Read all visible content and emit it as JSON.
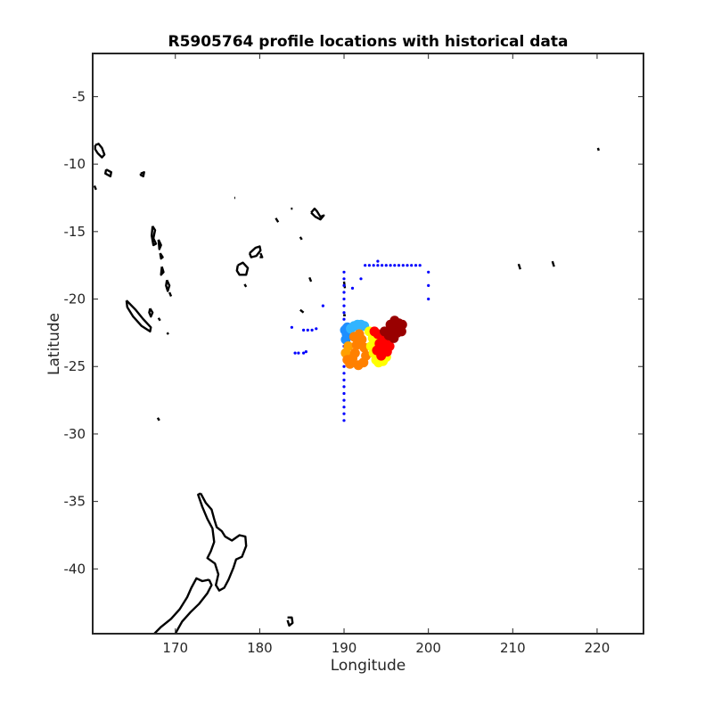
{
  "chart_data": {
    "type": "scatter",
    "title": "R5905764 profile locations with historical data",
    "xlabel": "Longitude",
    "ylabel": "Latitude",
    "xlim": [
      160.2,
      225.5
    ],
    "ylim": [
      -44.8,
      -1.8
    ],
    "xticks": [
      170,
      180,
      190,
      200,
      210,
      220
    ],
    "yticks": [
      -5,
      -10,
      -15,
      -20,
      -25,
      -30,
      -35,
      -40
    ],
    "grid": false,
    "legend": "none",
    "colors": {
      "historical": "#0000ff",
      "coastline": "#000000",
      "profiles_cold": "#1f8fff",
      "profiles_warm": "#ffff00",
      "profiles_hot": "#990000"
    },
    "series": [
      {
        "kind": "historical-locations",
        "color": "#0000ff",
        "points": [
          [
            190.0,
            -18.0
          ],
          [
            190.0,
            -18.5
          ],
          [
            190.0,
            -19.0
          ],
          [
            190.0,
            -19.5
          ],
          [
            190.0,
            -20.0
          ],
          [
            190.0,
            -20.5
          ],
          [
            190.0,
            -21.0
          ],
          [
            190.0,
            -21.5
          ],
          [
            190.0,
            -22.0
          ],
          [
            190.0,
            -22.5
          ],
          [
            190.0,
            -23.0
          ],
          [
            190.0,
            -23.5
          ],
          [
            190.0,
            -24.0
          ],
          [
            190.0,
            -24.5
          ],
          [
            190.0,
            -25.0
          ],
          [
            190.0,
            -25.5
          ],
          [
            190.0,
            -26.0
          ],
          [
            190.0,
            -26.5
          ],
          [
            190.0,
            -27.0
          ],
          [
            190.0,
            -27.5
          ],
          [
            190.0,
            -28.0
          ],
          [
            190.0,
            -28.5
          ],
          [
            190.0,
            -29.0
          ],
          [
            192.5,
            -17.5
          ],
          [
            193.0,
            -17.5
          ],
          [
            193.5,
            -17.5
          ],
          [
            194.0,
            -17.5
          ],
          [
            194.5,
            -17.5
          ],
          [
            195.0,
            -17.5
          ],
          [
            195.5,
            -17.5
          ],
          [
            196.0,
            -17.5
          ],
          [
            196.5,
            -17.5
          ],
          [
            197.0,
            -17.5
          ],
          [
            197.5,
            -17.5
          ],
          [
            198.0,
            -17.5
          ],
          [
            198.5,
            -17.5
          ],
          [
            199.0,
            -17.5
          ],
          [
            194.0,
            -17.2
          ],
          [
            200.0,
            -18.0
          ],
          [
            200.0,
            -19.0
          ],
          [
            200.0,
            -20.0
          ],
          [
            192.0,
            -18.5
          ],
          [
            191.0,
            -19.2
          ],
          [
            187.5,
            -20.5
          ],
          [
            185.2,
            -22.3
          ],
          [
            185.7,
            -22.3
          ],
          [
            186.2,
            -22.3
          ],
          [
            186.7,
            -22.2
          ],
          [
            183.8,
            -22.1
          ],
          [
            184.2,
            -24.0
          ],
          [
            184.6,
            -24.0
          ],
          [
            185.2,
            -24.0
          ],
          [
            185.5,
            -23.9
          ]
        ]
      },
      {
        "kind": "profile-locations",
        "color_scale": [
          "#1f8fff",
          "#32b4ff",
          "#ffa000",
          "#ff8000",
          "#ffff00",
          "#ff0000",
          "#990000"
        ],
        "points": [
          [
            190.1,
            -22.3,
            0.05
          ],
          [
            190.3,
            -22.6,
            0.05
          ],
          [
            190.4,
            -22.1,
            0.1
          ],
          [
            190.6,
            -22.4,
            0.1
          ],
          [
            190.2,
            -23.0,
            0.12
          ],
          [
            190.8,
            -22.2,
            0.15
          ],
          [
            191.2,
            -22.0,
            0.2
          ],
          [
            191.6,
            -21.9,
            0.22
          ],
          [
            192.0,
            -21.9,
            0.25
          ],
          [
            192.4,
            -22.0,
            0.25
          ],
          [
            190.5,
            -23.5,
            0.4
          ],
          [
            190.2,
            -24.0,
            0.42
          ],
          [
            190.4,
            -24.5,
            0.44
          ],
          [
            190.7,
            -24.8,
            0.45
          ],
          [
            191.0,
            -24.4,
            0.46
          ],
          [
            191.3,
            -24.0,
            0.47
          ],
          [
            191.5,
            -23.4,
            0.48
          ],
          [
            191.2,
            -22.8,
            0.49
          ],
          [
            191.8,
            -22.6,
            0.5
          ],
          [
            192.1,
            -23.0,
            0.5
          ],
          [
            192.4,
            -23.6,
            0.52
          ],
          [
            192.6,
            -24.2,
            0.54
          ],
          [
            192.3,
            -24.7,
            0.55
          ],
          [
            191.7,
            -24.9,
            0.55
          ],
          [
            193.0,
            -22.4,
            0.6
          ],
          [
            193.4,
            -22.9,
            0.62
          ],
          [
            193.2,
            -23.5,
            0.63
          ],
          [
            193.5,
            -24.0,
            0.64
          ],
          [
            193.8,
            -24.5,
            0.66
          ],
          [
            194.1,
            -24.7,
            0.68
          ],
          [
            194.6,
            -24.6,
            0.7
          ],
          [
            195.0,
            -24.3,
            0.71
          ],
          [
            194.4,
            -24.2,
            0.72
          ],
          [
            193.9,
            -23.8,
            0.74
          ],
          [
            194.2,
            -23.3,
            0.75
          ],
          [
            194.6,
            -23.7,
            0.76
          ],
          [
            195.1,
            -23.9,
            0.77
          ],
          [
            195.4,
            -23.5,
            0.78
          ],
          [
            194.9,
            -23.1,
            0.8
          ],
          [
            194.5,
            -22.8,
            0.82
          ],
          [
            194.0,
            -22.6,
            0.84
          ],
          [
            193.6,
            -22.4,
            0.85
          ],
          [
            194.8,
            -22.4,
            0.87
          ],
          [
            195.3,
            -22.7,
            0.88
          ],
          [
            195.7,
            -22.3,
            0.9
          ],
          [
            196.1,
            -22.0,
            0.91
          ],
          [
            196.5,
            -21.8,
            0.92
          ],
          [
            196.9,
            -21.9,
            0.94
          ],
          [
            196.3,
            -22.5,
            0.95
          ],
          [
            195.9,
            -22.9,
            0.96
          ],
          [
            196.8,
            -22.4,
            0.97
          ],
          [
            195.5,
            -21.9,
            0.98
          ],
          [
            196.0,
            -21.6,
            1.0
          ]
        ]
      }
    ],
    "coastlines": [
      [
        [
          160.5,
          -8.6
        ],
        [
          160.9,
          -8.5
        ],
        [
          161.3,
          -8.8
        ],
        [
          161.6,
          -9.3
        ],
        [
          161.3,
          -9.5
        ],
        [
          160.8,
          -9.2
        ],
        [
          160.5,
          -8.9
        ],
        [
          160.5,
          -8.6
        ]
      ],
      [
        [
          161.8,
          -10.4
        ],
        [
          162.4,
          -10.6
        ],
        [
          162.3,
          -10.9
        ],
        [
          161.7,
          -10.7
        ],
        [
          161.8,
          -10.4
        ]
      ],
      [
        [
          160.4,
          -11.6
        ],
        [
          160.6,
          -11.9
        ]
      ],
      [
        [
          165.9,
          -10.7
        ],
        [
          166.3,
          -10.6
        ],
        [
          166.2,
          -10.9
        ],
        [
          165.9,
          -10.8
        ],
        [
          165.9,
          -10.7
        ]
      ],
      [
        [
          167.3,
          -14.6
        ],
        [
          167.6,
          -14.9
        ],
        [
          167.4,
          -15.5
        ],
        [
          167.7,
          -15.9
        ],
        [
          167.4,
          -16.0
        ],
        [
          167.2,
          -15.3
        ],
        [
          167.3,
          -14.6
        ]
      ],
      [
        [
          168.0,
          -15.6
        ],
        [
          168.3,
          -16.0
        ],
        [
          168.1,
          -16.3
        ],
        [
          168.0,
          -15.6
        ]
      ],
      [
        [
          168.2,
          -16.6
        ],
        [
          168.5,
          -16.9
        ],
        [
          168.3,
          -17.0
        ],
        [
          168.2,
          -16.6
        ]
      ],
      [
        [
          168.4,
          -17.6
        ],
        [
          168.6,
          -18.0
        ],
        [
          168.3,
          -18.2
        ],
        [
          168.4,
          -17.6
        ]
      ],
      [
        [
          169.0,
          -18.6
        ],
        [
          169.3,
          -19.0
        ],
        [
          169.1,
          -19.4
        ],
        [
          168.9,
          -19.0
        ],
        [
          169.0,
          -18.6
        ]
      ],
      [
        [
          169.3,
          -19.5
        ],
        [
          169.5,
          -19.8
        ]
      ],
      [
        [
          164.2,
          -20.1
        ],
        [
          165.3,
          -20.8
        ],
        [
          166.2,
          -21.5
        ],
        [
          167.1,
          -22.1
        ],
        [
          167.0,
          -22.4
        ],
        [
          166.0,
          -22.0
        ],
        [
          165.0,
          -21.3
        ],
        [
          164.3,
          -20.6
        ],
        [
          164.2,
          -20.1
        ]
      ],
      [
        [
          167.0,
          -20.7
        ],
        [
          167.3,
          -21.0
        ],
        [
          167.1,
          -21.3
        ],
        [
          166.9,
          -21.0
        ],
        [
          167.0,
          -20.7
        ]
      ],
      [
        [
          168.0,
          -21.4
        ],
        [
          168.2,
          -21.6
        ]
      ],
      [
        [
          169.0,
          -22.6
        ],
        [
          169.2,
          -22.5
        ]
      ],
      [
        [
          167.9,
          -28.8
        ],
        [
          168.1,
          -29.0
        ]
      ],
      [
        [
          177.4,
          -17.5
        ],
        [
          178.0,
          -17.3
        ],
        [
          178.6,
          -17.7
        ],
        [
          178.4,
          -18.2
        ],
        [
          177.6,
          -18.2
        ],
        [
          177.3,
          -17.9
        ],
        [
          177.4,
          -17.5
        ]
      ],
      [
        [
          178.8,
          -16.6
        ],
        [
          179.5,
          -16.2
        ],
        [
          180.0,
          -16.1
        ],
        [
          180.1,
          -16.4
        ],
        [
          179.6,
          -16.8
        ],
        [
          179.0,
          -16.9
        ],
        [
          178.8,
          -16.6
        ]
      ],
      [
        [
          180.1,
          -16.6
        ],
        [
          180.3,
          -16.9
        ],
        [
          180.0,
          -16.9
        ]
      ],
      [
        [
          178.2,
          -18.9
        ],
        [
          178.4,
          -19.1
        ]
      ],
      [
        [
          177.0,
          -12.5
        ],
        [
          177.1,
          -12.5
        ]
      ],
      [
        [
          181.9,
          -14.0
        ],
        [
          182.2,
          -14.3
        ]
      ],
      [
        [
          183.7,
          -13.3
        ],
        [
          183.9,
          -13.3
        ]
      ],
      [
        [
          186.1,
          -13.6
        ],
        [
          186.5,
          -13.3
        ],
        [
          186.8,
          -13.5
        ],
        [
          187.2,
          -13.9
        ],
        [
          187.6,
          -13.8
        ],
        [
          187.2,
          -14.1
        ],
        [
          186.6,
          -13.9
        ],
        [
          186.1,
          -13.6
        ]
      ],
      [
        [
          184.8,
          -15.4
        ],
        [
          185.0,
          -15.6
        ]
      ],
      [
        [
          185.9,
          -18.4
        ],
        [
          186.1,
          -18.7
        ]
      ],
      [
        [
          190.0,
          -18.7
        ],
        [
          190.1,
          -19.2
        ]
      ],
      [
        [
          184.8,
          -20.8
        ],
        [
          185.2,
          -21.0
        ]
      ],
      [
        [
          189.9,
          -21.2
        ],
        [
          190.2,
          -21.2
        ]
      ],
      [
        [
          173.0,
          -34.4
        ],
        [
          173.6,
          -35.1
        ],
        [
          174.3,
          -35.6
        ],
        [
          174.6,
          -36.3
        ],
        [
          174.9,
          -36.9
        ],
        [
          175.5,
          -37.2
        ],
        [
          175.9,
          -37.6
        ],
        [
          176.7,
          -37.9
        ],
        [
          177.6,
          -37.5
        ],
        [
          178.3,
          -37.6
        ],
        [
          178.4,
          -38.3
        ],
        [
          177.9,
          -39.1
        ],
        [
          177.2,
          -39.3
        ],
        [
          176.9,
          -39.9
        ],
        [
          176.3,
          -40.8
        ],
        [
          175.8,
          -41.4
        ],
        [
          175.2,
          -41.6
        ],
        [
          174.8,
          -41.2
        ],
        [
          175.1,
          -40.4
        ],
        [
          174.7,
          -39.6
        ],
        [
          173.8,
          -39.2
        ],
        [
          174.2,
          -38.7
        ],
        [
          174.6,
          -38.0
        ],
        [
          174.4,
          -37.0
        ],
        [
          173.8,
          -36.3
        ],
        [
          173.2,
          -35.4
        ],
        [
          172.7,
          -34.5
        ],
        [
          173.0,
          -34.4
        ]
      ],
      [
        [
          174.0,
          -40.8
        ],
        [
          174.3,
          -41.2
        ],
        [
          173.8,
          -41.8
        ],
        [
          172.8,
          -42.6
        ],
        [
          171.8,
          -43.2
        ],
        [
          170.8,
          -43.9
        ],
        [
          170.0,
          -44.8
        ],
        [
          169.0,
          -45.0
        ],
        [
          168.0,
          -45.0
        ],
        [
          167.2,
          -45.0
        ],
        [
          168.3,
          -44.3
        ],
        [
          169.5,
          -43.7
        ],
        [
          170.5,
          -43.0
        ],
        [
          171.4,
          -42.1
        ],
        [
          171.9,
          -41.4
        ],
        [
          172.5,
          -40.7
        ],
        [
          173.2,
          -40.9
        ],
        [
          174.0,
          -40.8
        ]
      ],
      [
        [
          183.3,
          -43.6
        ],
        [
          183.8,
          -43.6
        ],
        [
          183.9,
          -44.0
        ],
        [
          183.5,
          -44.2
        ],
        [
          183.3,
          -43.8
        ]
      ],
      [
        [
          210.7,
          -17.4
        ],
        [
          210.9,
          -17.8
        ]
      ],
      [
        [
          214.7,
          -17.2
        ],
        [
          214.9,
          -17.6
        ]
      ],
      [
        [
          220.1,
          -8.8
        ],
        [
          220.2,
          -9.0
        ]
      ]
    ]
  }
}
